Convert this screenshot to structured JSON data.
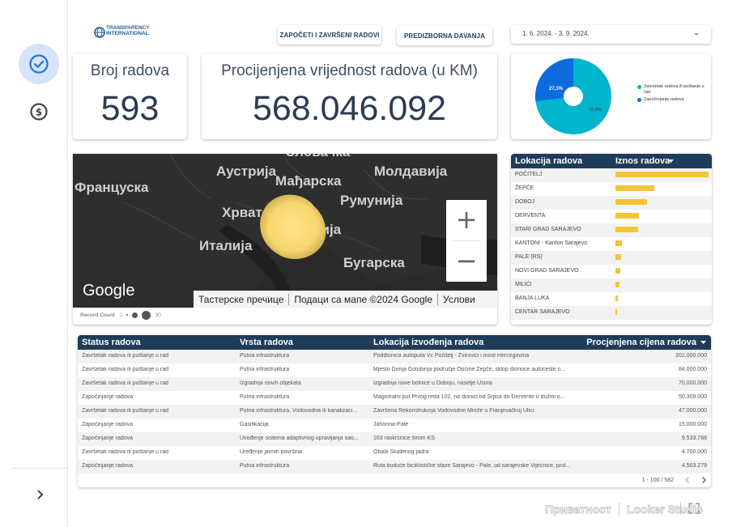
{
  "sidebar": {
    "items": [
      {
        "icon": "check-circle-icon",
        "active": true
      },
      {
        "icon": "dollar-circle-icon",
        "active": false
      }
    ],
    "collapse_icon": "chevron-right-icon"
  },
  "header": {
    "logo_line1": "TRANSPARENCY",
    "logo_line2": "INTERNATIONAL",
    "button_works": "ZAPOČETI I ZAVRŠENI RADOVI",
    "button_pre_election": "PREDIZBORNA DAVANJA",
    "date_range": "1. 6. 2024. - 3. 9. 2024."
  },
  "kpi": {
    "count_label": "Broj radova",
    "count_value": "593",
    "value_label": "Procijenjena vrijednost radova (u KM)",
    "value_value": "568.046.092"
  },
  "pie": {
    "slices": [
      {
        "label": "Završetak radova ili puštanje u rad",
        "pct_label": "72,9%",
        "value": 72.9,
        "color": "#00b5cc"
      },
      {
        "label": "Započinjanje radova",
        "pct_label": "27,1%",
        "value": 27.1,
        "color": "#0e6bde"
      }
    ]
  },
  "map": {
    "labels": {
      "france": "Француска",
      "austria": "Аустрија",
      "hungary": "Мађарска",
      "moldova": "Молдавија",
      "croatia": "Хрват",
      "serbia": "бија",
      "romania": "Румунија",
      "italy": "Италија",
      "bulgaria": "Бугарска",
      "slovakia": "Словачка"
    },
    "zoom_in": "+",
    "zoom_out": "−",
    "google": "Google",
    "footer_shortcuts": "Тастерске пречице",
    "footer_data": "Подаци са мапе ©2024 Google",
    "footer_terms": "Услови",
    "record_count_label": "Record Count",
    "record_min": "1",
    "record_max": "30"
  },
  "location_table": {
    "col1": "Lokacija radova",
    "col2": "Iznos radova",
    "rows": [
      {
        "label": "POČITELJ",
        "value": 100
      },
      {
        "label": "ŽEPČE",
        "value": 42
      },
      {
        "label": "DOBOJ",
        "value": 34
      },
      {
        "label": "DERVENTA",
        "value": 25
      },
      {
        "label": "STARI GRAD SARAJEVO",
        "value": 24
      },
      {
        "label": "KANTONI - Kanton Sarajevo",
        "value": 7
      },
      {
        "label": "PALE (RS)",
        "value": 6
      },
      {
        "label": "NOVI GRAD SARAJEVO",
        "value": 5
      },
      {
        "label": "MILIĆI",
        "value": 4
      },
      {
        "label": "BANJA LUKA",
        "value": 3
      },
      {
        "label": "CENTAR SARAJEVO",
        "value": 2
      }
    ]
  },
  "works_table": {
    "columns": [
      "Status radova",
      "Vrsta radova",
      "Lokacija izvođenja radova",
      "Procjenjena cijena radova"
    ],
    "rows": [
      [
        "Završetak radova ili puštanje u rad",
        "Putna infrastruktura",
        "Poddionica autoputa Vc Počitelj - Zvirovići i most Hercegovina",
        "202.000.000"
      ],
      [
        "Završetak radova ili puštanje u rad",
        "Putna infrastruktura",
        "Mjesto Donja Golubinja područje Općine Žepče, sklop dionoce autoceste n...",
        "84.000.000"
      ],
      [
        "Završetak radova ili puštanje u rad",
        "Izgradnja novih objekata",
        "Izgradnja nove bolnice u Doboju, naselje Usora",
        "70.000.000"
      ],
      [
        "Započinjanje radova",
        "Putna infrastruktura",
        "Magistralni put Prvog reda 102, na dionici od Srpca do Dervente u dužini o...",
        "50.309.000"
      ],
      [
        "Završetak radova ili puštanje u rad",
        "Putna infrastruktura, Vodovodna ili kanalizaci...",
        "Završena Rekonstrukcija Vodovodne Mreže u Franjevačkoj Ulici",
        "47.000.000"
      ],
      [
        "Započinjanje radova",
        "Gasifikacija",
        "Jahorina-Pale",
        "15.000.000"
      ],
      [
        "Započinjanje radova",
        "Uvođenje sistema adaptivnog upravljanja sao...",
        "163 raskrsnice širom KS",
        "9.533.766"
      ],
      [
        "Završetak radova ili puštanje u rad",
        "Uređenje javnih površina",
        "Obala Studenog jadra",
        "4.700.000"
      ],
      [
        "Započinjanje radova",
        "Putna infrastruktura",
        "Ruta buduće biciklističke staze Sarajevo - Pale, od sarajevske Vijećnice, prol...",
        "4.503.279"
      ]
    ],
    "pagination": "1 - 100 / 582"
  },
  "footer": {
    "privacy": "Приватност",
    "brand": "Looker Studio"
  },
  "colors": {
    "accent": "#1f3c59",
    "bar": "#f4c534",
    "sidebar_active": "#d6e4fb",
    "icon_blue": "#1a73e8"
  }
}
